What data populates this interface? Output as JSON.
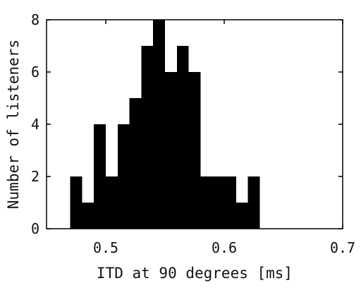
{
  "chart_data": {
    "type": "bar",
    "xlabel": "ITD at 90 degrees [ms]",
    "ylabel": "Number of listeners",
    "xlim": [
      0.45,
      0.7
    ],
    "ylim": [
      0,
      8
    ],
    "xticks": [
      0.5,
      0.6,
      0.7
    ],
    "xtick_labels": [
      "0.5",
      "0.6",
      "0.7"
    ],
    "yticks": [
      0,
      2,
      4,
      6,
      8
    ],
    "ytick_labels": [
      "0",
      "2",
      "4",
      "6",
      "8"
    ],
    "bin_width": 0.01,
    "bin_starts": [
      0.47,
      0.48,
      0.49,
      0.5,
      0.51,
      0.52,
      0.53,
      0.54,
      0.55,
      0.56,
      0.57,
      0.58,
      0.59,
      0.6,
      0.61,
      0.62,
      0.63,
      0.64
    ],
    "values": [
      2,
      1,
      4,
      2,
      4,
      5,
      7,
      8,
      6,
      7,
      6,
      2,
      2,
      2,
      1,
      2,
      0,
      0
    ],
    "grid": false,
    "bar_color": "#000000"
  }
}
